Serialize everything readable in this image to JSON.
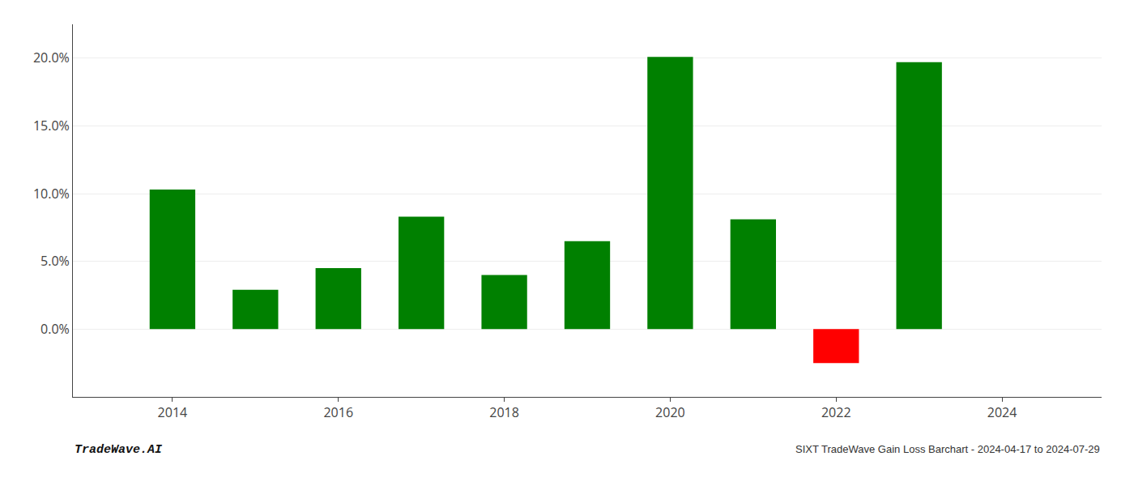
{
  "chart_data": {
    "type": "bar",
    "title": "SIXT TradeWave Gain Loss Barchart - 2024-04-17 to 2024-07-29",
    "annotations": [
      "TradeWave.AI"
    ],
    "x": [
      2014,
      2015,
      2016,
      2017,
      2018,
      2019,
      2020,
      2021,
      2022,
      2023
    ],
    "values": [
      0.103,
      0.029,
      0.045,
      0.083,
      0.04,
      0.065,
      0.201,
      0.081,
      -0.025,
      0.197
    ],
    "colors": [
      "#008000",
      "#008000",
      "#008000",
      "#008000",
      "#008000",
      "#008000",
      "#008000",
      "#008000",
      "#ff0000",
      "#008000"
    ],
    "xlim": [
      2012.8,
      2025.2
    ],
    "xticks": [
      2014,
      2016,
      2018,
      2020,
      2022,
      2024
    ],
    "ylim": [
      -0.05,
      0.225
    ],
    "yticks": [
      {
        "value": 0.0,
        "label": "0.0%"
      },
      {
        "value": 0.05,
        "label": "5.0%"
      },
      {
        "value": 0.1,
        "label": "10.0%"
      },
      {
        "value": 0.15,
        "label": "15.0%"
      },
      {
        "value": 0.2,
        "label": "20.0%"
      }
    ],
    "grid": true
  }
}
